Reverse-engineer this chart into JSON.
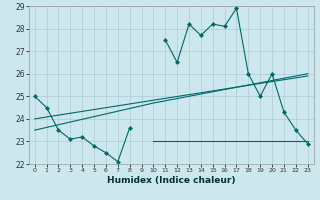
{
  "xlabel": "Humidex (Indice chaleur)",
  "line1_x": [
    0,
    1,
    2,
    3,
    4,
    5,
    6,
    7,
    8
  ],
  "line1_y": [
    25.0,
    24.5,
    23.5,
    23.1,
    23.2,
    22.8,
    22.5,
    22.1,
    23.6
  ],
  "line1b_x": [
    11,
    12,
    13,
    14,
    15,
    16,
    17,
    18,
    19,
    20,
    21,
    22,
    23
  ],
  "line1b_y": [
    27.5,
    26.5,
    28.2,
    27.7,
    28.2,
    28.1,
    28.9,
    26.0,
    25.0,
    26.0,
    24.3,
    23.5,
    22.9
  ],
  "line2_x": [
    10,
    23
  ],
  "line2_y": [
    23.0,
    23.0
  ],
  "line3_x": [
    0,
    23
  ],
  "line3_y": [
    24.0,
    25.9
  ],
  "line4_x": [
    0,
    10,
    23
  ],
  "line4_y": [
    23.5,
    24.7,
    26.0
  ],
  "bg_color": "#cce8ee",
  "grid_color": "#b0ccd4",
  "line_color": "#006868",
  "ylim": [
    22,
    29
  ],
  "yticks": [
    22,
    23,
    24,
    25,
    26,
    27,
    28,
    29
  ],
  "xlim": [
    -0.5,
    23.5
  ],
  "xticks": [
    0,
    1,
    2,
    3,
    4,
    5,
    6,
    7,
    8,
    9,
    10,
    11,
    12,
    13,
    14,
    15,
    16,
    17,
    18,
    19,
    20,
    21,
    22,
    23
  ]
}
